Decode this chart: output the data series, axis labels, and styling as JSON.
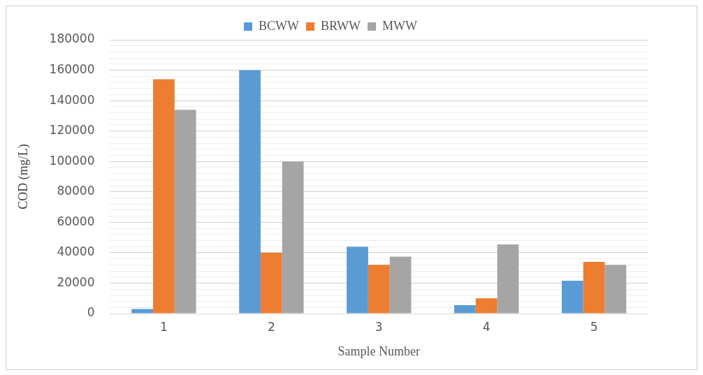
{
  "chart_data": {
    "type": "bar",
    "xlabel": "Sample Number",
    "ylabel": "COD (mg/L)",
    "categories": [
      "1",
      "2",
      "3",
      "4",
      "5"
    ],
    "series": [
      {
        "name": "BCWW",
        "color": "#5b9bd5",
        "values": [
          3000,
          160000,
          44000,
          5500,
          21600
        ]
      },
      {
        "name": "BRWW",
        "color": "#ed7d31",
        "values": [
          154000,
          40000,
          32000,
          10000,
          34000
        ]
      },
      {
        "name": "MWW",
        "color": "#a5a5a5",
        "values": [
          134000,
          100000,
          37400,
          45500,
          32000
        ]
      }
    ],
    "ylim": [
      0,
      180000
    ],
    "yticks": [
      0,
      {
        "value": 4000,
        "label": null
      },
      {
        "value": 8000,
        "label": null
      },
      {
        "value": 12000,
        "label": null
      },
      {
        "value": 16000,
        "label": null
      },
      20000,
      {
        "value": 24000,
        "label": null
      },
      {
        "value": 28000,
        "label": null
      },
      {
        "value": 32000,
        "label": null
      },
      {
        "value": 36000,
        "label": null
      },
      40000,
      {
        "value": 44000,
        "label": null
      },
      {
        "value": 48000,
        "label": null
      },
      {
        "value": 52000,
        "label": null
      },
      {
        "value": 56000,
        "label": null
      },
      60000,
      {
        "value": 64000,
        "label": null
      },
      {
        "value": 68000,
        "label": null
      },
      {
        "value": 72000,
        "label": null
      },
      {
        "value": 76000,
        "label": null
      },
      80000,
      {
        "value": 84000,
        "label": null
      },
      {
        "value": 88000,
        "label": null
      },
      {
        "value": 92000,
        "label": null
      },
      {
        "value": 96000,
        "label": null
      },
      100000,
      {
        "value": 104000,
        "label": null
      },
      {
        "value": 108000,
        "label": null
      },
      {
        "value": 112000,
        "label": null
      },
      {
        "value": 116000,
        "label": null
      },
      120000,
      {
        "value": 124000,
        "label": null
      },
      {
        "value": 128000,
        "label": null
      },
      {
        "value": 132000,
        "label": null
      },
      {
        "value": 136000,
        "label": null
      },
      140000,
      {
        "value": 144000,
        "label": null
      },
      {
        "value": 148000,
        "label": null
      },
      {
        "value": 152000,
        "label": null
      },
      {
        "value": 156000,
        "label": null
      },
      160000,
      {
        "value": 164000,
        "label": null
      },
      {
        "value": 168000,
        "label": null
      },
      {
        "value": 172000,
        "label": null
      },
      {
        "value": 176000,
        "label": null
      },
      180000
    ],
    "grid": "y",
    "legend": "top"
  }
}
